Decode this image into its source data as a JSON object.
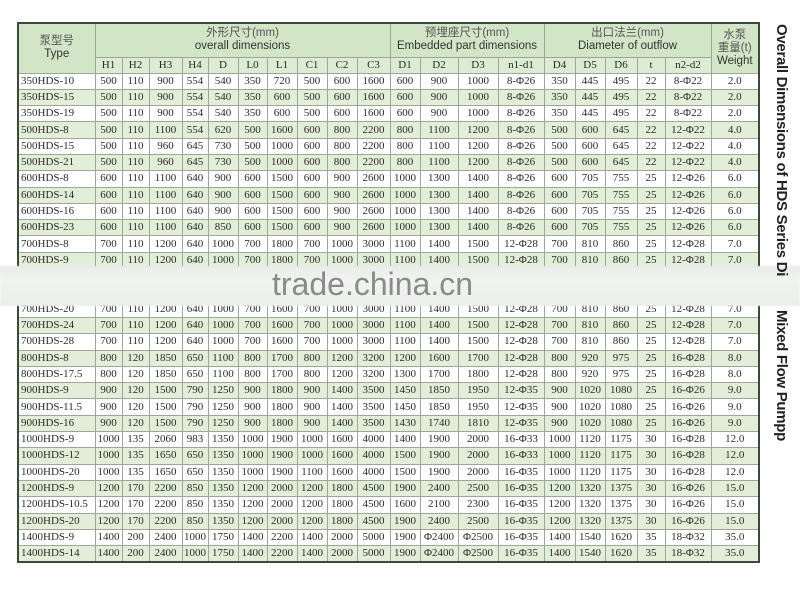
{
  "header": {
    "type_zh": "泵型号",
    "type_en": "Type",
    "overall_zh": "外形尺寸(mm)",
    "overall_en": "overall dimensions",
    "embedded_zh": "预埋座尺寸(mm)",
    "embedded_en": "Embedded part dimensions",
    "outflow_zh": "出口法兰(mm)",
    "outflow_en": "Diameter of outflow",
    "weight_zh1": "水泵",
    "weight_zh2": "重量(t)",
    "weight_en": "Weight",
    "columns": [
      "H1",
      "H2",
      "H3",
      "H4",
      "D",
      "L0",
      "L1",
      "C1",
      "C2",
      "C3",
      "D1",
      "D2",
      "D3",
      "n1-d1",
      "D4",
      "D5",
      "D6",
      "t",
      "n2-d2"
    ]
  },
  "side_title": {
    "part1": "Overall Dimensions of HDS Series Di",
    "part2": "Mixed Flow Pumpp"
  },
  "watermark": "trade.china.cn",
  "colors": {
    "header_bg": "#d2e5c6",
    "row_alt": "#e2eed8",
    "border": "#9aa89a"
  },
  "rows": [
    [
      "350HDS-10",
      "500",
      "110",
      "900",
      "554",
      "540",
      "350",
      "720",
      "500",
      "600",
      "1600",
      "600",
      "900",
      "1000",
      "8-Φ26",
      "350",
      "445",
      "495",
      "22",
      "8-Φ22",
      "2.0"
    ],
    [
      "350HDS-15",
      "500",
      "110",
      "900",
      "554",
      "540",
      "350",
      "600",
      "500",
      "600",
      "1600",
      "600",
      "900",
      "1000",
      "8-Φ26",
      "350",
      "445",
      "495",
      "22",
      "8-Φ22",
      "2.0"
    ],
    [
      "350HDS-19",
      "500",
      "110",
      "900",
      "554",
      "540",
      "350",
      "600",
      "500",
      "600",
      "1600",
      "600",
      "900",
      "1000",
      "8-Φ26",
      "350",
      "445",
      "495",
      "22",
      "8-Φ22",
      "2.0"
    ],
    [
      "500HDS-8",
      "500",
      "110",
      "1100",
      "554",
      "620",
      "500",
      "1600",
      "600",
      "800",
      "2200",
      "800",
      "1100",
      "1200",
      "8-Φ26",
      "500",
      "600",
      "645",
      "22",
      "12-Φ22",
      "4.0"
    ],
    [
      "500HDS-15",
      "500",
      "110",
      "960",
      "645",
      "730",
      "500",
      "1000",
      "600",
      "800",
      "2200",
      "800",
      "1100",
      "1200",
      "8-Φ26",
      "500",
      "600",
      "645",
      "22",
      "12-Φ22",
      "4.0"
    ],
    [
      "500HDS-21",
      "500",
      "110",
      "960",
      "645",
      "730",
      "500",
      "1000",
      "600",
      "800",
      "2200",
      "800",
      "1100",
      "1200",
      "8-Φ26",
      "500",
      "600",
      "645",
      "22",
      "12-Φ22",
      "4.0"
    ],
    [
      "600HDS-8",
      "600",
      "110",
      "1100",
      "640",
      "900",
      "600",
      "1500",
      "600",
      "900",
      "2600",
      "1000",
      "1300",
      "1400",
      "8-Φ26",
      "600",
      "705",
      "755",
      "25",
      "12-Φ26",
      "6.0"
    ],
    [
      "600HDS-14",
      "600",
      "110",
      "1100",
      "640",
      "900",
      "600",
      "1500",
      "600",
      "900",
      "2600",
      "1000",
      "1300",
      "1400",
      "8-Φ26",
      "600",
      "705",
      "755",
      "25",
      "12-Φ26",
      "6.0"
    ],
    [
      "600HDS-16",
      "600",
      "110",
      "1100",
      "640",
      "900",
      "600",
      "1500",
      "600",
      "900",
      "2600",
      "1000",
      "1300",
      "1400",
      "8-Φ26",
      "600",
      "705",
      "755",
      "25",
      "12-Φ26",
      "6.0"
    ],
    [
      "600HDS-23",
      "600",
      "110",
      "1100",
      "640",
      "850",
      "600",
      "1500",
      "600",
      "900",
      "2600",
      "1000",
      "1300",
      "1400",
      "8-Φ26",
      "600",
      "705",
      "755",
      "25",
      "12-Φ26",
      "6.0"
    ],
    [
      "700HDS-8",
      "700",
      "110",
      "1200",
      "640",
      "1000",
      "700",
      "1800",
      "700",
      "1000",
      "3000",
      "1100",
      "1400",
      "1500",
      "12-Φ28",
      "700",
      "810",
      "860",
      "25",
      "12-Φ28",
      "7.0"
    ],
    [
      "700HDS-9",
      "700",
      "110",
      "1200",
      "640",
      "1000",
      "700",
      "1800",
      "700",
      "1000",
      "3000",
      "1100",
      "1400",
      "1500",
      "12-Φ28",
      "700",
      "810",
      "860",
      "25",
      "12-Φ28",
      "7.0"
    ],
    [],
    [],
    [
      "700HDS-20",
      "700",
      "110",
      "1200",
      "640",
      "1000",
      "700",
      "1600",
      "700",
      "1000",
      "3000",
      "1100",
      "1400",
      "1500",
      "12-Φ28",
      "700",
      "810",
      "860",
      "25",
      "12-Φ28",
      "7.0"
    ],
    [
      "700HDS-24",
      "700",
      "110",
      "1200",
      "640",
      "1000",
      "700",
      "1600",
      "700",
      "1000",
      "3000",
      "1100",
      "1400",
      "1500",
      "12-Φ28",
      "700",
      "810",
      "860",
      "25",
      "12-Φ28",
      "7.0"
    ],
    [
      "700HDS-28",
      "700",
      "110",
      "1200",
      "640",
      "1000",
      "700",
      "1600",
      "700",
      "1000",
      "3000",
      "1100",
      "1400",
      "1500",
      "12-Φ28",
      "700",
      "810",
      "860",
      "25",
      "12-Φ28",
      "7.0"
    ],
    [
      "800HDS-8",
      "800",
      "120",
      "1850",
      "650",
      "1100",
      "800",
      "1700",
      "800",
      "1200",
      "3200",
      "1200",
      "1600",
      "1700",
      "12-Φ28",
      "800",
      "920",
      "975",
      "25",
      "16-Φ28",
      "8.0"
    ],
    [
      "800HDS-17.5",
      "800",
      "120",
      "1850",
      "650",
      "1100",
      "800",
      "1700",
      "800",
      "1200",
      "3200",
      "1300",
      "1700",
      "1800",
      "12-Φ28",
      "800",
      "920",
      "975",
      "25",
      "16-Φ28",
      "8.0"
    ],
    [
      "900HDS-9",
      "900",
      "120",
      "1500",
      "790",
      "1250",
      "900",
      "1800",
      "900",
      "1400",
      "3500",
      "1450",
      "1850",
      "1950",
      "12-Φ35",
      "900",
      "1020",
      "1080",
      "25",
      "16-Φ26",
      "9.0"
    ],
    [
      "900HDS-11.5",
      "900",
      "120",
      "1500",
      "790",
      "1250",
      "900",
      "1800",
      "900",
      "1400",
      "3500",
      "1450",
      "1850",
      "1950",
      "12-Φ35",
      "900",
      "1020",
      "1080",
      "25",
      "16-Φ26",
      "9.0"
    ],
    [
      "900HDS-16",
      "900",
      "120",
      "1500",
      "790",
      "1250",
      "900",
      "1800",
      "900",
      "1400",
      "3500",
      "1430",
      "1740",
      "1810",
      "12-Φ35",
      "900",
      "1020",
      "1080",
      "25",
      "16-Φ26",
      "9.0"
    ],
    [
      "1000HDS-9",
      "1000",
      "135",
      "2060",
      "983",
      "1350",
      "1000",
      "1900",
      "1000",
      "1600",
      "4000",
      "1400",
      "1900",
      "2000",
      "16-Φ33",
      "1000",
      "1120",
      "1175",
      "30",
      "16-Φ28",
      "12.0"
    ],
    [
      "1000HDS-12",
      "1000",
      "135",
      "1650",
      "650",
      "1350",
      "1000",
      "1900",
      "1000",
      "1600",
      "4000",
      "1500",
      "1900",
      "2000",
      "16-Φ33",
      "1000",
      "1120",
      "1175",
      "30",
      "16-Φ28",
      "12.0"
    ],
    [
      "1000HDS-20",
      "1000",
      "135",
      "1650",
      "650",
      "1350",
      "1000",
      "1900",
      "1100",
      "1600",
      "4000",
      "1500",
      "1900",
      "2000",
      "16-Φ35",
      "1000",
      "1120",
      "1175",
      "30",
      "16-Φ28",
      "12.0"
    ],
    [
      "1200HDS-9",
      "1200",
      "170",
      "2200",
      "850",
      "1350",
      "1200",
      "2000",
      "1200",
      "1800",
      "4500",
      "1900",
      "2400",
      "2500",
      "16-Φ35",
      "1200",
      "1320",
      "1375",
      "30",
      "16-Φ26",
      "15.0"
    ],
    [
      "1200HDS-10.5",
      "1200",
      "170",
      "2200",
      "850",
      "1350",
      "1200",
      "2000",
      "1200",
      "1800",
      "4500",
      "1600",
      "2100",
      "2300",
      "16-Φ35",
      "1200",
      "1320",
      "1375",
      "30",
      "16-Φ26",
      "15.0"
    ],
    [
      "1200HDS-20",
      "1200",
      "170",
      "2200",
      "850",
      "1350",
      "1200",
      "2000",
      "1200",
      "1800",
      "4500",
      "1900",
      "2400",
      "2500",
      "16-Φ35",
      "1200",
      "1320",
      "1375",
      "30",
      "16-Φ26",
      "15.0"
    ],
    [
      "1400HDS-9",
      "1400",
      "200",
      "2400",
      "1000",
      "1750",
      "1400",
      "2200",
      "1400",
      "2000",
      "5000",
      "1900",
      "Φ2400",
      "Φ2500",
      "16-Φ35",
      "1400",
      "1540",
      "1620",
      "35",
      "18-Φ32",
      "35.0"
    ],
    [
      "1400HDS-14",
      "1400",
      "200",
      "2400",
      "1000",
      "1750",
      "1400",
      "2200",
      "1400",
      "2000",
      "5000",
      "1900",
      "Φ2400",
      "Φ2500",
      "16-Φ35",
      "1400",
      "1540",
      "1620",
      "35",
      "18-Φ32",
      "35.0"
    ]
  ]
}
